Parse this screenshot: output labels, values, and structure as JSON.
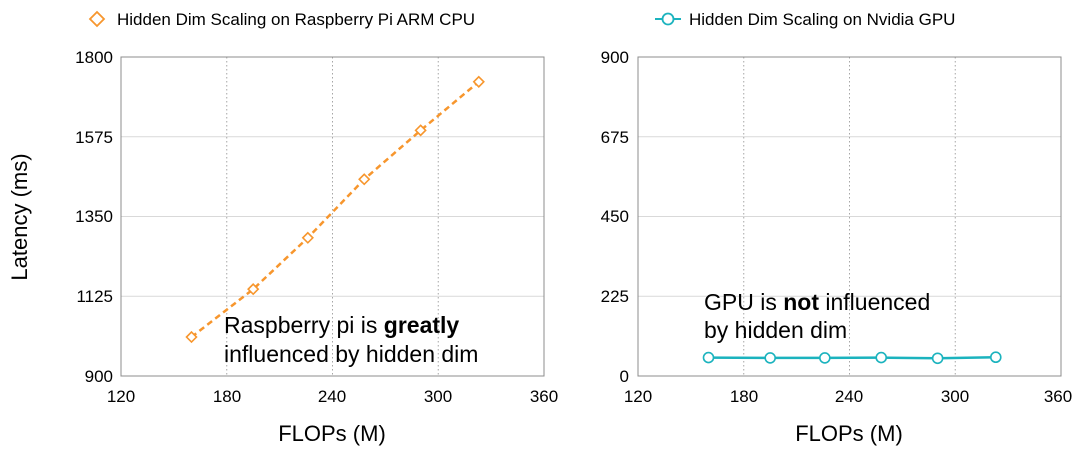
{
  "chart_data": [
    {
      "type": "line",
      "legend": "Hidden Dim Scaling on Raspberry Pi ARM CPU",
      "legend_marker": "diamond-icon",
      "color": "#f7962d",
      "line_style": "dashed",
      "xlabel": "FLOPs (M)",
      "ylabel": "Latency (ms)",
      "xlim": [
        120,
        360
      ],
      "ylim": [
        900,
        1800
      ],
      "x_ticks": [
        "120",
        "180",
        "240",
        "300",
        "360"
      ],
      "y_ticks": [
        "900",
        "1125",
        "1350",
        "1575",
        "1800"
      ],
      "grid": "vertical dotted + horizontal solid",
      "x": [
        160,
        195,
        226,
        258,
        290,
        323
      ],
      "y": [
        1010,
        1145,
        1290,
        1455,
        1593,
        1730
      ],
      "annotation": {
        "line1_prefix": "Raspberry pi is ",
        "line1_emphasis": "greatly",
        "line2": "influenced by hidden dim"
      }
    },
    {
      "type": "line",
      "legend": "Hidden Dim Scaling on Nvidia GPU",
      "legend_marker": "circle-icon",
      "color": "#1bb3be",
      "line_style": "solid",
      "xlabel": "FLOPs (M)",
      "ylabel": "",
      "xlim": [
        120,
        360
      ],
      "ylim": [
        0,
        900
      ],
      "x_ticks": [
        "120",
        "180",
        "240",
        "300",
        "360"
      ],
      "y_ticks": [
        "0",
        "225",
        "450",
        "675",
        "900"
      ],
      "grid": "vertical dotted + horizontal solid",
      "x": [
        160,
        195,
        226,
        258,
        290,
        323
      ],
      "y": [
        52,
        51,
        51,
        52,
        50,
        53
      ],
      "annotation": {
        "line1_prefix": "GPU is ",
        "line1_emphasis": "not",
        "line1_suffix": " influenced",
        "line2": "by hidden dim"
      }
    }
  ]
}
